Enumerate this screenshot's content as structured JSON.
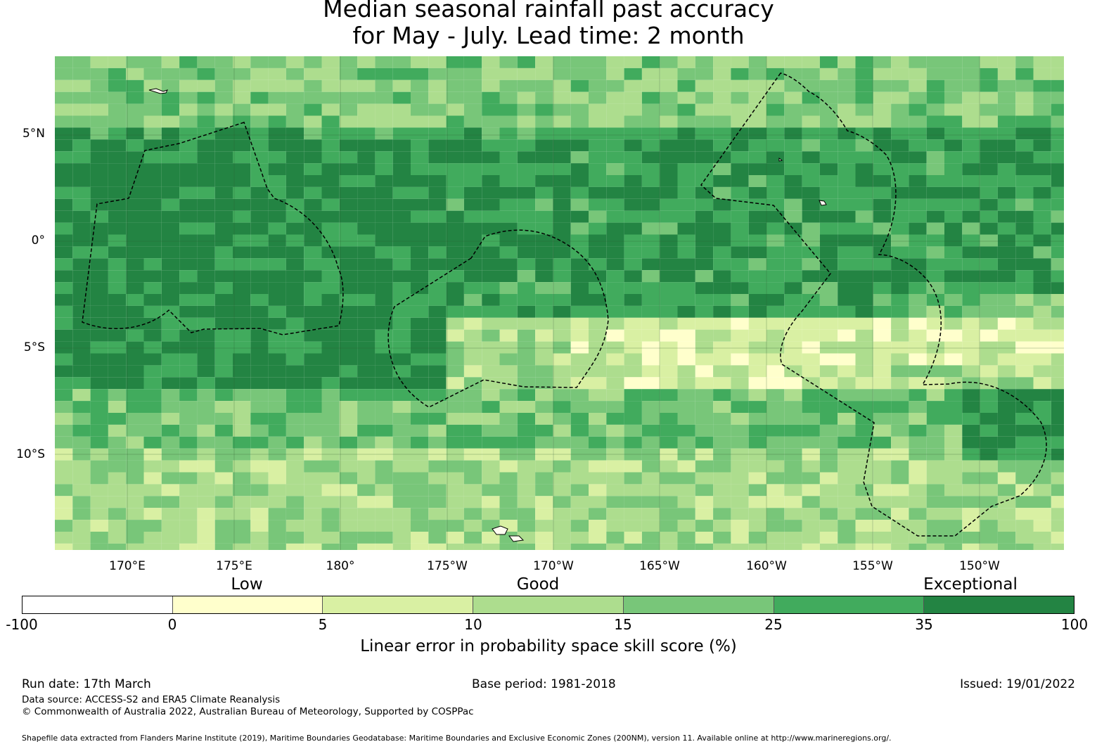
{
  "title": {
    "line1": "Median seasonal rainfall past accuracy",
    "line2": "for May - July. Lead time: 2 month"
  },
  "map": {
    "lat_labels": [
      "5°N",
      "0°",
      "5°S",
      "10°S"
    ],
    "lon_labels": [
      "170°E",
      "175°E",
      "180°",
      "175°W",
      "170°W",
      "165°W",
      "160°W",
      "155°W",
      "150°W"
    ],
    "lat_range": [
      -14.5,
      8.6
    ],
    "lon_range": [
      166.6,
      214.0
    ],
    "boundary_style": "dashed black lines (EEZ boundaries)",
    "grid": true
  },
  "legend": {
    "categories": [
      "Low",
      "Good",
      "Exceptional"
    ],
    "tick_labels": [
      "-100",
      "0",
      "5",
      "10",
      "15",
      "25",
      "35",
      "100"
    ],
    "colors": [
      "#ffffff",
      "#ffffcc",
      "#d9f0a3",
      "#addd8e",
      "#78c679",
      "#41ab5d",
      "#238443"
    ],
    "title": "Linear error in probability space skill score (%)"
  },
  "footer": {
    "run_date": "Run date: 17th March",
    "base_period": "Base period: 1981-2018",
    "issued": "Issued: 19/01/2022",
    "data_source": "Data source: ACCESS-S2 and ERA5 Climate Reanalysis",
    "copyright": "© Commonwealth of Australia 2022, Australian Bureau of Meteorology, Supported by COSPPac",
    "shapefile": "Shapefile data extracted from Flanders Marine Institute (2019), Maritime Boundaries Geodatabase: Maritime Boundaries and Exclusive Economic Zones (200NM), version 11. Available online at http://www.marineregions.org/."
  }
}
